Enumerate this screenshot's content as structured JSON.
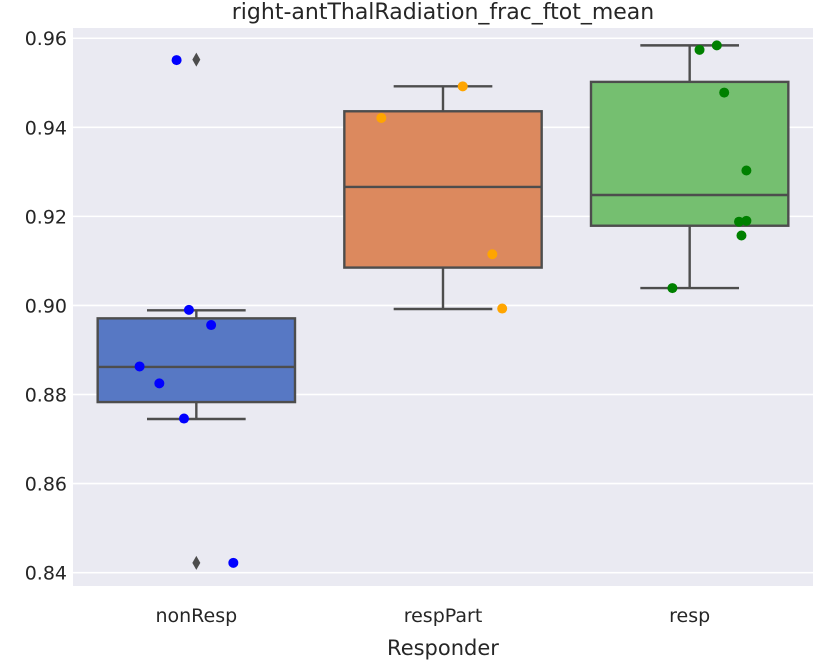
{
  "chart_data": {
    "type": "boxplot",
    "title": "right-antThalRadiation_frac_ftot_mean",
    "xlabel": "Responder",
    "ylabel": "",
    "ylim": [
      0.837,
      0.9623
    ],
    "yticks": [
      0.84,
      0.86,
      0.88,
      0.9,
      0.92,
      0.94,
      0.96
    ],
    "ytick_labels": [
      "0.84",
      "0.86",
      "0.88",
      "0.90",
      "0.92",
      "0.94",
      "0.96"
    ],
    "grid": true,
    "categories": [
      "nonResp",
      "respPart",
      "resp"
    ],
    "boxes": [
      {
        "name": "nonResp",
        "color": "#5778c4",
        "whislo": 0.8745,
        "q1": 0.8783,
        "med": 0.8862,
        "q3": 0.8971,
        "whishi": 0.8989,
        "fliers": [
          0.9552,
          0.8422
        ]
      },
      {
        "name": "respPart",
        "color": "#dc895e",
        "whislo": 0.8992,
        "q1": 0.9085,
        "med": 0.9266,
        "q3": 0.9436,
        "whishi": 0.9492,
        "fliers": []
      },
      {
        "name": "resp",
        "color": "#75bf70",
        "whislo": 0.9039,
        "q1": 0.9179,
        "med": 0.9248,
        "q3": 0.9502,
        "whishi": 0.9584,
        "fliers": []
      }
    ],
    "points": [
      {
        "category": "nonResp",
        "color": "#0000ff",
        "values": [
          0.9551,
          0.899,
          0.8956,
          0.8863,
          0.8825,
          0.8746,
          0.8422
        ],
        "jitter": [
          -0.08,
          -0.03,
          0.06,
          -0.23,
          -0.15,
          -0.05,
          0.15
        ]
      },
      {
        "category": "respPart",
        "color": "#ffa500",
        "values": [
          0.9492,
          0.9421,
          0.9115,
          0.8993
        ],
        "jitter": [
          0.08,
          -0.25,
          0.2,
          0.24
        ]
      },
      {
        "category": "resp",
        "color": "#008000",
        "values": [
          0.9584,
          0.9574,
          0.9478,
          0.9303,
          0.919,
          0.9188,
          0.9157,
          0.9039
        ],
        "jitter": [
          0.11,
          0.04,
          0.14,
          0.23,
          0.23,
          0.2,
          0.21,
          -0.07
        ]
      }
    ]
  }
}
